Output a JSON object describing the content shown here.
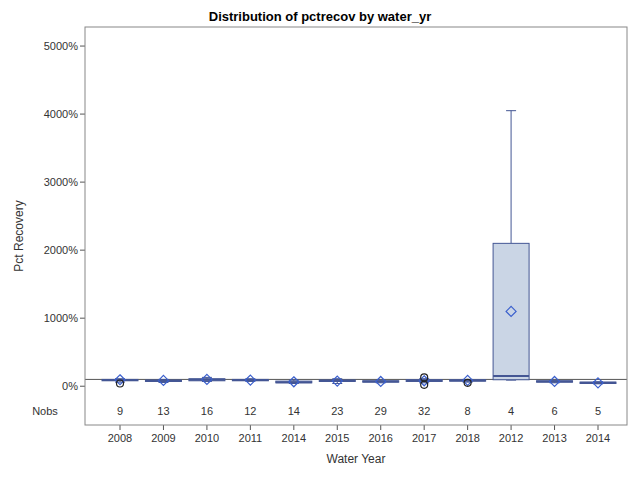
{
  "chart_data": {
    "type": "box",
    "title": "Distribution of pctrecov by water_yr",
    "x_label": "Water Year",
    "y_label": "Pct Recovery",
    "categories": [
      "2008",
      "2009",
      "2010",
      "2011",
      "2014",
      "2015",
      "2016",
      "2017",
      "2018",
      "2012",
      "2013",
      "2014"
    ],
    "stats": {
      "min": [
        60,
        55,
        70,
        70,
        40,
        40,
        50,
        50,
        60,
        90,
        50,
        35
      ],
      "q1": [
        80,
        70,
        80,
        80,
        50,
        70,
        60,
        70,
        75,
        95,
        60,
        40
      ],
      "median": [
        90,
        80,
        95,
        90,
        60,
        80,
        70,
        85,
        85,
        150,
        70,
        50
      ],
      "q3": [
        100,
        90,
        110,
        100,
        75,
        90,
        80,
        95,
        95,
        2100,
        80,
        60
      ],
      "max": [
        110,
        100,
        130,
        110,
        90,
        110,
        90,
        110,
        100,
        4050,
        85,
        65
      ],
      "mean": [
        95,
        85,
        100,
        90,
        65,
        75,
        70,
        80,
        85,
        1100,
        70,
        50
      ]
    },
    "outliers": [
      [
        40
      ],
      [],
      [],
      [],
      [],
      [],
      [],
      [
        20,
        130
      ],
      [
        50
      ],
      [],
      [],
      []
    ],
    "nobs_label": "Nobs",
    "nobs": [
      9,
      13,
      16,
      12,
      14,
      23,
      29,
      32,
      8,
      4,
      6,
      5
    ],
    "reference_line": 100,
    "color": "#cad5e5",
    "ylim": [
      -570,
      5280
    ],
    "yticks": [
      {
        "value": 0,
        "label": "0%"
      },
      {
        "value": 1000,
        "label": "1000%"
      },
      {
        "value": 2000,
        "label": "2000%"
      },
      {
        "value": 3000,
        "label": "3000%"
      },
      {
        "value": 4000,
        "label": "4000%"
      },
      {
        "value": 5000,
        "label": "5000%"
      }
    ]
  }
}
